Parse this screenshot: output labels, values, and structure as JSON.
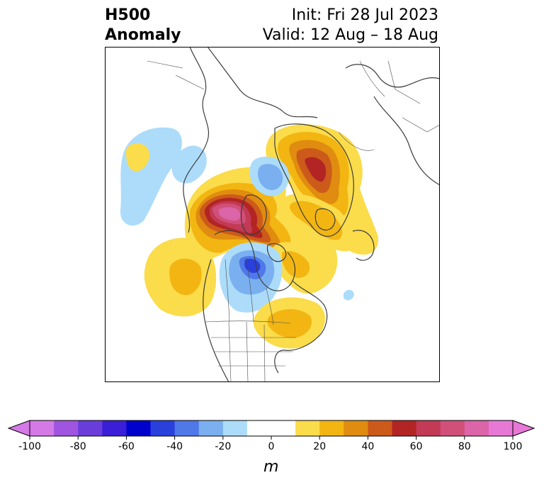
{
  "header": {
    "title_line1": "H500",
    "title_line2": "Anomaly",
    "init": "Init: Fri 28 Jul 2023",
    "valid": "Valid: 12 Aug – 18 Aug"
  },
  "colorbar": {
    "unit": "m",
    "ticks": [
      "-100",
      "-80",
      "-60",
      "-40",
      "-20",
      "0",
      "20",
      "40",
      "60",
      "80",
      "100"
    ],
    "colors": [
      "#d47ae6",
      "#9f55e0",
      "#6a3ddb",
      "#3a1fd6",
      "#0000cc",
      "#2a40dc",
      "#4f78e8",
      "#7ab0f0",
      "#acdcfa",
      "#ffffff",
      "#ffffff",
      "#fbdc4a",
      "#f2b512",
      "#e08c10",
      "#cc5a1a",
      "#b32424",
      "#c23a55",
      "#d0507a",
      "#dc64a8",
      "#e878d6"
    ],
    "extend_low": "#d47ae6",
    "extend_high": "#e878d6"
  },
  "map": {
    "projection": "polar stereographic, North America / Arctic",
    "anomaly_centers": [
      {
        "region": "Northern Canada / Beaufort Sea",
        "sign": "positive",
        "max_m": 100
      },
      {
        "region": "Greenland",
        "sign": "positive",
        "max_m": 60
      },
      {
        "region": "Eastern United States",
        "sign": "positive",
        "max_m": 20
      },
      {
        "region": "Northeast Pacific",
        "sign": "positive",
        "max_m": 30
      },
      {
        "region": "Hudson Bay / Central Canada",
        "sign": "negative",
        "min_m": -50
      },
      {
        "region": "Baffin Bay",
        "sign": "negative",
        "min_m": -30
      },
      {
        "region": "North Pacific",
        "sign": "negative",
        "min_m": -20
      }
    ]
  }
}
